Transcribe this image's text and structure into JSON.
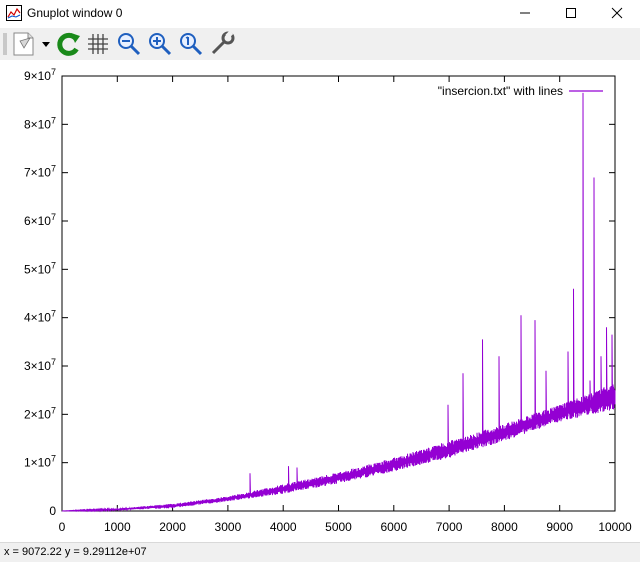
{
  "window": {
    "title": "Gnuplot window 0"
  },
  "toolbar": {
    "buttons": [
      {
        "name": "options-menu-icon"
      },
      {
        "name": "replot-icon"
      },
      {
        "name": "grid-icon"
      },
      {
        "name": "zoom-out-icon"
      },
      {
        "name": "zoom-in-icon"
      },
      {
        "name": "zoom-reset-icon"
      },
      {
        "name": "settings-icon"
      }
    ]
  },
  "status": {
    "coords": "x = 9072.22 y = 9.29112e+07"
  },
  "colors": {
    "series": "#9400d3",
    "axis": "#000000"
  },
  "chart_data": {
    "type": "line",
    "title": "",
    "xlabel": "",
    "ylabel": "",
    "xlim": [
      0,
      10000
    ],
    "ylim": [
      0,
      90000000
    ],
    "grid": false,
    "legend_position": "top-right",
    "x_ticks": [
      "0",
      "1000",
      "2000",
      "3000",
      "4000",
      "5000",
      "6000",
      "7000",
      "8000",
      "9000",
      "10000"
    ],
    "y_ticks": [
      {
        "base": "0",
        "exp": ""
      },
      {
        "base": "1×10",
        "exp": "7"
      },
      {
        "base": "2×10",
        "exp": "7"
      },
      {
        "base": "3×10",
        "exp": "7"
      },
      {
        "base": "4×10",
        "exp": "7"
      },
      {
        "base": "5×10",
        "exp": "7"
      },
      {
        "base": "6×10",
        "exp": "7"
      },
      {
        "base": "7×10",
        "exp": "7"
      },
      {
        "base": "8×10",
        "exp": "7"
      },
      {
        "base": "9×10",
        "exp": "7"
      }
    ],
    "series": [
      {
        "name": "\"insercion.txt\" with lines",
        "envelope": {
          "x": [
            0,
            1000,
            2000,
            3000,
            4000,
            5000,
            6000,
            7000,
            8000,
            9000,
            10000
          ],
          "y_lower": [
            0,
            150000,
            600000,
            2000000,
            3600000,
            5700000,
            8200000,
            11000000,
            14500000,
            18500000,
            21000000
          ],
          "y_upper": [
            0,
            500000,
            1500000,
            3000000,
            5500000,
            8000000,
            11000000,
            14500000,
            18000000,
            22000000,
            26500000
          ]
        },
        "spikes": [
          {
            "x": 3400,
            "y": 7800000
          },
          {
            "x": 4100,
            "y": 9300000
          },
          {
            "x": 4250,
            "y": 9000000
          },
          {
            "x": 6980,
            "y": 22000000
          },
          {
            "x": 7250,
            "y": 28500000
          },
          {
            "x": 7600,
            "y": 35500000
          },
          {
            "x": 7900,
            "y": 32000000
          },
          {
            "x": 8300,
            "y": 40500000
          },
          {
            "x": 8550,
            "y": 39500000
          },
          {
            "x": 8750,
            "y": 29000000
          },
          {
            "x": 9150,
            "y": 33000000
          },
          {
            "x": 9250,
            "y": 46000000
          },
          {
            "x": 9420,
            "y": 86500000
          },
          {
            "x": 9550,
            "y": 27000000
          },
          {
            "x": 9620,
            "y": 69000000
          },
          {
            "x": 9750,
            "y": 32000000
          },
          {
            "x": 9850,
            "y": 38000000
          },
          {
            "x": 9950,
            "y": 36500000
          }
        ]
      }
    ]
  }
}
